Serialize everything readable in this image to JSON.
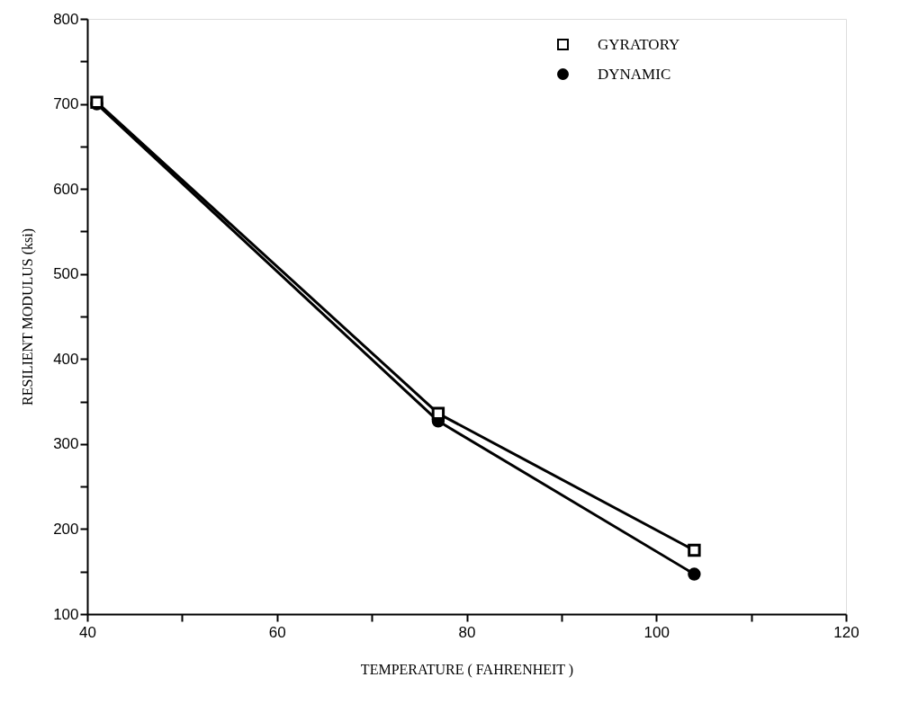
{
  "chart_data": {
    "type": "line",
    "xlabel": "TEMPERATURE ( FAHRENHEIT )",
    "ylabel": "RESILIENT MODULUS (ksi)",
    "x": [
      41,
      77,
      104
    ],
    "series": [
      {
        "name": "GYRATORY",
        "color": "#000000",
        "marker": "square",
        "values": [
          702,
          336,
          175
        ]
      },
      {
        "name": "DYNAMIC",
        "color": "#000000",
        "marker": "circle",
        "values": [
          700,
          327,
          147
        ]
      }
    ],
    "xlim": [
      40,
      120
    ],
    "xticks": [
      40,
      {
        "value": 50,
        "label": null
      },
      60,
      {
        "value": 70,
        "label": null
      },
      80,
      {
        "value": 90,
        "label": null
      },
      100,
      {
        "value": 110,
        "label": null
      },
      120
    ],
    "ylim": [
      100,
      800
    ],
    "yticks": [
      100,
      {
        "value": 150,
        "label": null
      },
      200,
      {
        "value": 250,
        "label": null
      },
      300,
      {
        "value": 350,
        "label": null
      },
      400,
      {
        "value": 450,
        "label": null
      },
      500,
      {
        "value": 550,
        "label": null
      },
      600,
      {
        "value": 650,
        "label": null
      },
      700,
      {
        "value": 750,
        "label": null
      },
      800
    ],
    "grid": false,
    "legend": "top right",
    "line_style": "solid"
  }
}
